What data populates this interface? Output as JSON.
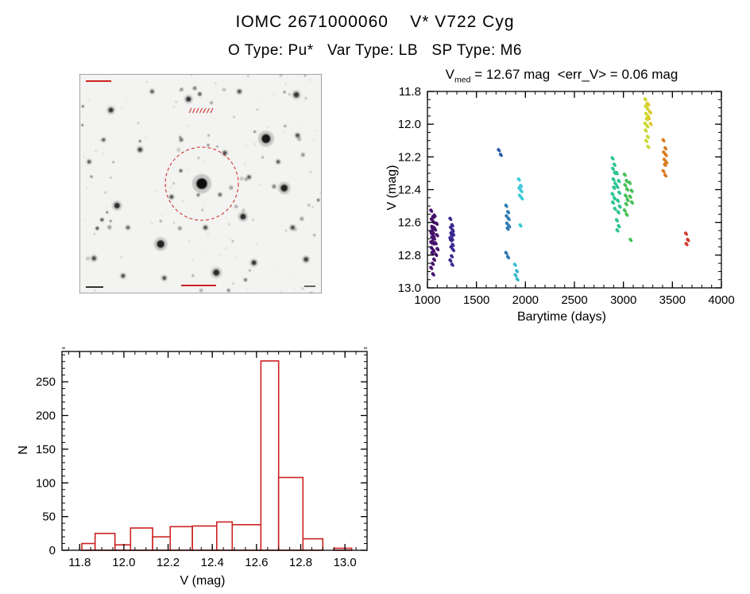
{
  "page": {
    "title": "IOMC 2671000060    V* V722 Cyg",
    "subtitle": "O Type: Pu*   Var Type: LB   SP Type: M6",
    "background": "#ffffff"
  },
  "finding_chart": {
    "description": "grayscale star field finding chart with dashed circle marking the target star",
    "target_marker_color": "#cc2222"
  },
  "chart_data": [
    {
      "type": "scatter",
      "name": "lightcurve",
      "title": "V_med = 12.67 mag  <err_V> = 0.06 mag",
      "title_parts": {
        "v": "V",
        "sub": "med",
        "rest": " = 12.67 mag  <err_V> = 0.06 mag"
      },
      "xlabel": "Barytime (days)",
      "ylabel": "V (mag)",
      "xlim": [
        1000,
        4000
      ],
      "ylim": [
        11.8,
        13.0
      ],
      "y_axis_inverted": true,
      "grid": false,
      "xticks": [
        "1000",
        "1500",
        "2000",
        "2500",
        "3000",
        "3500",
        "4000"
      ],
      "yticks": [
        "11.8",
        "12.0",
        "12.2",
        "12.4",
        "12.6",
        "12.8",
        "13.0"
      ],
      "x_minor_step": 100,
      "y_minor_step": 0.05,
      "clusters": [
        {
          "x": 1050,
          "color": "#45106b",
          "v": [
            12.53,
            12.56,
            12.58,
            12.6,
            12.62,
            12.63,
            12.64,
            12.65,
            12.66,
            12.67,
            12.68,
            12.69,
            12.7,
            12.71,
            12.72,
            12.73,
            12.75,
            12.77,
            12.79,
            12.82,
            12.85,
            12.88,
            12.91
          ]
        },
        {
          "x": 1085,
          "color": "#45106b",
          "v": [
            12.56,
            12.6,
            12.64,
            12.68,
            12.72,
            12.76,
            12.8
          ]
        },
        {
          "x": 1245,
          "color": "#3a2a90",
          "v": [
            12.58,
            12.61,
            12.63,
            12.65,
            12.66,
            12.67,
            12.68,
            12.69,
            12.7,
            12.71,
            12.73,
            12.75,
            12.77,
            12.8,
            12.83,
            12.86
          ]
        },
        {
          "x": 1740,
          "color": "#2d5fa9",
          "v": [
            12.16,
            12.18
          ]
        },
        {
          "x": 1815,
          "color": "#2f7ab3",
          "v": [
            12.5,
            12.53,
            12.56,
            12.58,
            12.6,
            12.62,
            12.64,
            12.78,
            12.81
          ]
        },
        {
          "x": 1905,
          "color": "#38b8cd",
          "v": [
            12.86,
            12.89,
            12.92,
            12.95
          ]
        },
        {
          "x": 1945,
          "color": "#3cc9d9",
          "v": [
            12.34,
            12.37,
            12.39,
            12.41,
            12.43,
            12.45,
            12.62
          ]
        },
        {
          "x": 2900,
          "color": "#2dc493",
          "v": [
            12.21,
            12.24,
            12.27,
            12.3,
            12.33,
            12.36,
            12.39,
            12.42,
            12.45,
            12.48,
            12.51
          ]
        },
        {
          "x": 2945,
          "color": "#2dc493",
          "v": [
            12.3,
            12.34,
            12.38,
            12.42,
            12.46,
            12.5,
            12.54,
            12.58,
            12.62,
            12.65
          ]
        },
        {
          "x": 3025,
          "color": "#46c055",
          "v": [
            12.31,
            12.34,
            12.37,
            12.4,
            12.43,
            12.46,
            12.49,
            12.52,
            12.55
          ]
        },
        {
          "x": 3075,
          "color": "#46c055",
          "v": [
            12.36,
            12.4,
            12.44,
            12.48,
            12.7
          ]
        },
        {
          "x": 3235,
          "color": "#ccd832",
          "v": [
            11.85,
            11.87,
            11.89,
            11.91,
            11.93,
            11.95,
            11.97,
            11.99,
            12.01,
            12.04,
            12.07,
            12.1,
            12.14
          ]
        },
        {
          "x": 3265,
          "color": "#e0c828",
          "v": [
            11.88,
            11.92,
            11.96,
            12.0
          ]
        },
        {
          "x": 3420,
          "color": "#da7b1f",
          "v": [
            12.1,
            12.14,
            12.17,
            12.19,
            12.21,
            12.23,
            12.25,
            12.28,
            12.31
          ]
        },
        {
          "x": 3650,
          "color": "#d23b2e",
          "v": [
            12.67,
            12.7,
            12.73
          ]
        }
      ]
    },
    {
      "type": "bar",
      "name": "magnitude-histogram",
      "xlabel": "V (mag)",
      "ylabel": "N",
      "xlim": [
        11.72,
        13.1
      ],
      "ylim": [
        0,
        295
      ],
      "grid": false,
      "xticks": [
        "11.8",
        "12.0",
        "12.2",
        "12.4",
        "12.6",
        "12.8",
        "13.0"
      ],
      "yticks": [
        "0",
        "50",
        "100",
        "150",
        "200",
        "250"
      ],
      "x_minor_step": 0.05,
      "y_minor_step": 10,
      "bar_color": "#cc2222",
      "bars": [
        {
          "x0": 11.81,
          "x1": 11.87,
          "n": 10
        },
        {
          "x0": 11.87,
          "x1": 11.96,
          "n": 25
        },
        {
          "x0": 11.96,
          "x1": 12.03,
          "n": 8
        },
        {
          "x0": 12.03,
          "x1": 12.13,
          "n": 33
        },
        {
          "x0": 12.13,
          "x1": 12.21,
          "n": 20
        },
        {
          "x0": 12.21,
          "x1": 12.31,
          "n": 35
        },
        {
          "x0": 12.31,
          "x1": 12.42,
          "n": 36
        },
        {
          "x0": 12.42,
          "x1": 12.49,
          "n": 42
        },
        {
          "x0": 12.49,
          "x1": 12.62,
          "n": 38
        },
        {
          "x0": 12.62,
          "x1": 12.7,
          "n": 281
        },
        {
          "x0": 12.7,
          "x1": 12.81,
          "n": 108
        },
        {
          "x0": 12.81,
          "x1": 12.9,
          "n": 17
        },
        {
          "x0": 12.95,
          "x1": 13.03,
          "n": 3
        }
      ]
    }
  ]
}
